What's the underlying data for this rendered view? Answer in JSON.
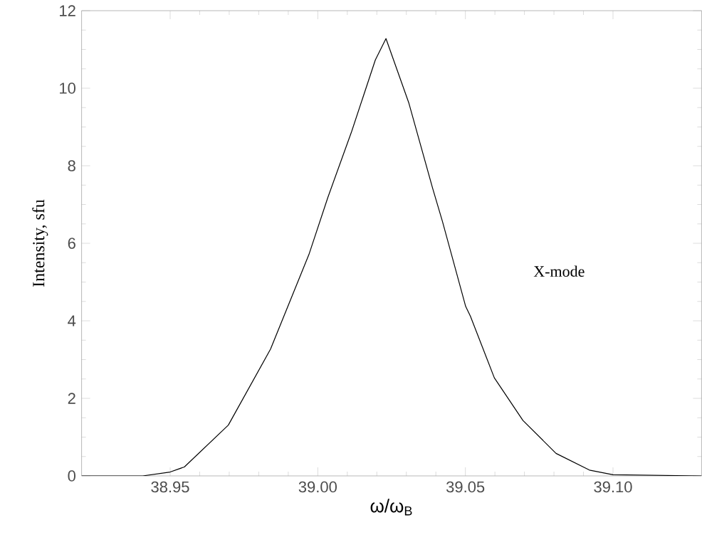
{
  "chart_data": {
    "type": "line",
    "xlabel": "ω/ω$_{B}$",
    "ylabel": "Intensity, sfu",
    "xlim": [
      38.92,
      39.13
    ],
    "ylim": [
      0,
      12
    ],
    "xticks": [
      38.95,
      {
        "value": 39.0,
        "label": "39.00"
      },
      39.05,
      {
        "value": 39.1,
        "label": "39.10"
      }
    ],
    "yticks": [
      0,
      2,
      4,
      6,
      8,
      10,
      12
    ],
    "grid": false,
    "legend": false,
    "marker": "none",
    "line_style": "solid",
    "series": [
      {
        "name": "X-mode",
        "color": "#000000",
        "x": [
          38.92,
          38.935,
          38.9407,
          38.95,
          38.9548,
          38.9697,
          38.984,
          38.997,
          39.0034,
          39.0115,
          39.0195,
          39.0231,
          39.0308,
          39.0389,
          39.0422,
          39.0453,
          39.0501,
          39.0517,
          39.0598,
          39.0695,
          39.0807,
          39.092,
          39.1,
          39.13
        ],
        "values": [
          0,
          0,
          0,
          0.1,
          0.23,
          1.31,
          3.27,
          5.71,
          7.18,
          8.89,
          10.73,
          11.28,
          9.63,
          7.42,
          6.57,
          5.71,
          4.37,
          4.12,
          2.53,
          1.43,
          0.58,
          0.15,
          0.03,
          0
        ]
      }
    ]
  }
}
